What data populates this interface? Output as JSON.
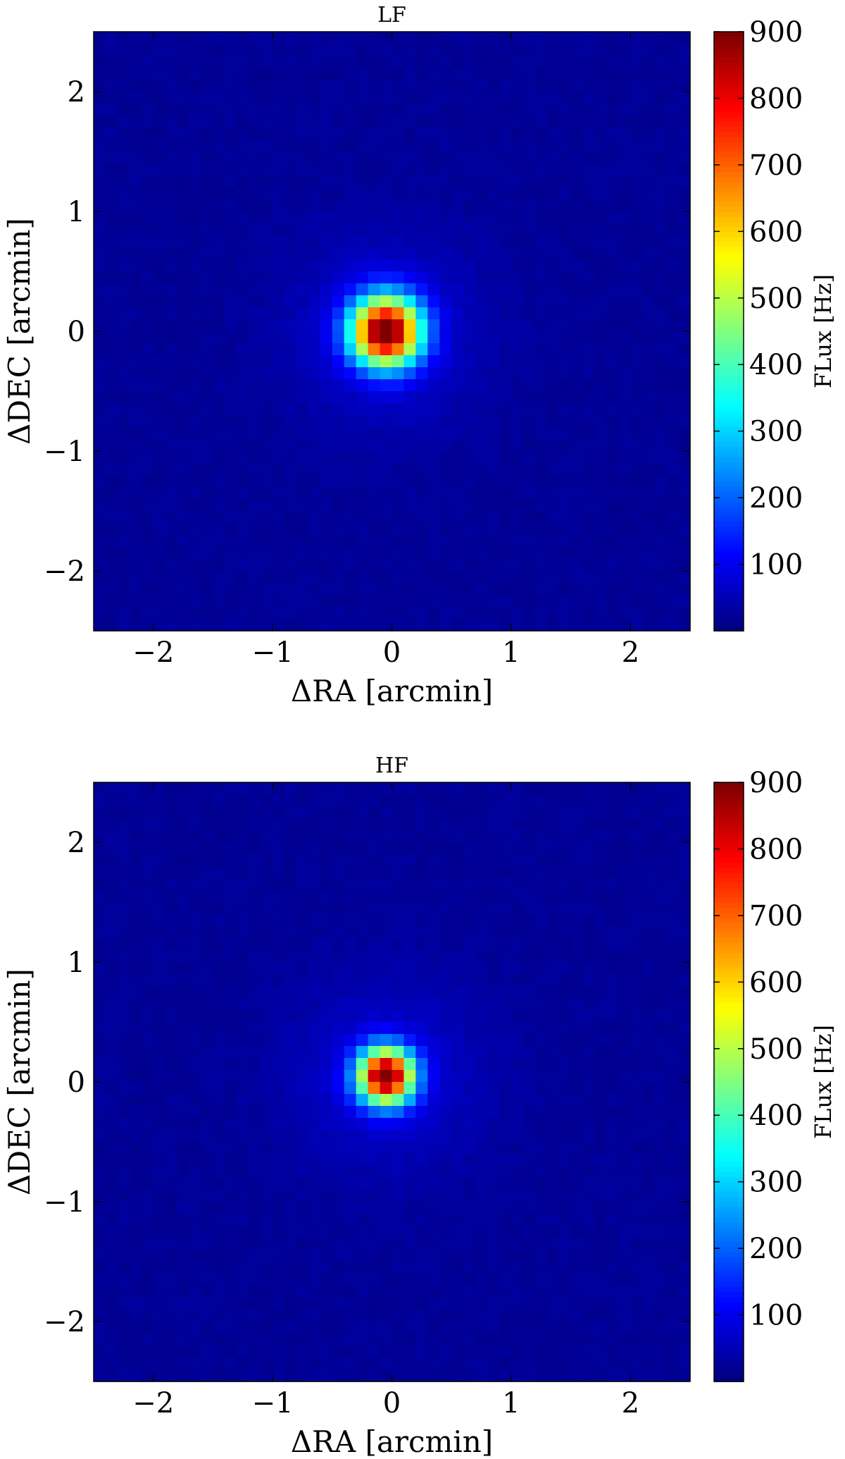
{
  "chart_data": [
    {
      "type": "heatmap",
      "title": "LF",
      "xlabel": "ΔRA [arcmin]",
      "ylabel": "ΔDEC [arcmin]",
      "xlim": [
        -2.5,
        2.5
      ],
      "ylim": [
        -2.5,
        2.5
      ],
      "xticks": [
        -2,
        -1,
        0,
        1,
        2
      ],
      "yticks": [
        -2,
        -1,
        0,
        1,
        2
      ],
      "xtick_labels": [
        "−2",
        "−1",
        "0",
        "1",
        "2"
      ],
      "ytick_labels": [
        "−2",
        "−1",
        "0",
        "1",
        "2"
      ],
      "colormap": "jet",
      "colorbar": {
        "label": "FLux [Hz]",
        "range": [
          0,
          900
        ],
        "ticks": [
          100,
          200,
          300,
          400,
          500,
          600,
          700,
          800,
          900
        ],
        "tick_labels": [
          "100",
          "200",
          "300",
          "400",
          "500",
          "600",
          "700",
          "800",
          "900"
        ]
      },
      "source": {
        "peak": 900,
        "center_x": -0.05,
        "center_y": 0.0,
        "sigma_arcmin": 0.2,
        "background": 20
      },
      "pixel_size_arcmin": 0.1
    },
    {
      "type": "heatmap",
      "title": "HF",
      "xlabel": "ΔRA [arcmin]",
      "ylabel": "ΔDEC [arcmin]",
      "xlim": [
        -2.5,
        2.5
      ],
      "ylim": [
        -2.5,
        2.5
      ],
      "xticks": [
        -2,
        -1,
        0,
        1,
        2
      ],
      "yticks": [
        -2,
        -1,
        0,
        1,
        2
      ],
      "xtick_labels": [
        "−2",
        "−1",
        "0",
        "1",
        "2"
      ],
      "ytick_labels": [
        "−2",
        "−1",
        "0",
        "1",
        "2"
      ],
      "colormap": "jet",
      "colorbar": {
        "label": "FLux [Hz]",
        "range": [
          0,
          900
        ],
        "ticks": [
          100,
          200,
          300,
          400,
          500,
          600,
          700,
          800,
          900
        ],
        "tick_labels": [
          "100",
          "200",
          "300",
          "400",
          "500",
          "600",
          "700",
          "800",
          "900"
        ]
      },
      "source": {
        "peak": 900,
        "center_x": -0.05,
        "center_y": 0.05,
        "sigma_arcmin": 0.16,
        "background": 20
      },
      "pixel_size_arcmin": 0.1
    }
  ]
}
